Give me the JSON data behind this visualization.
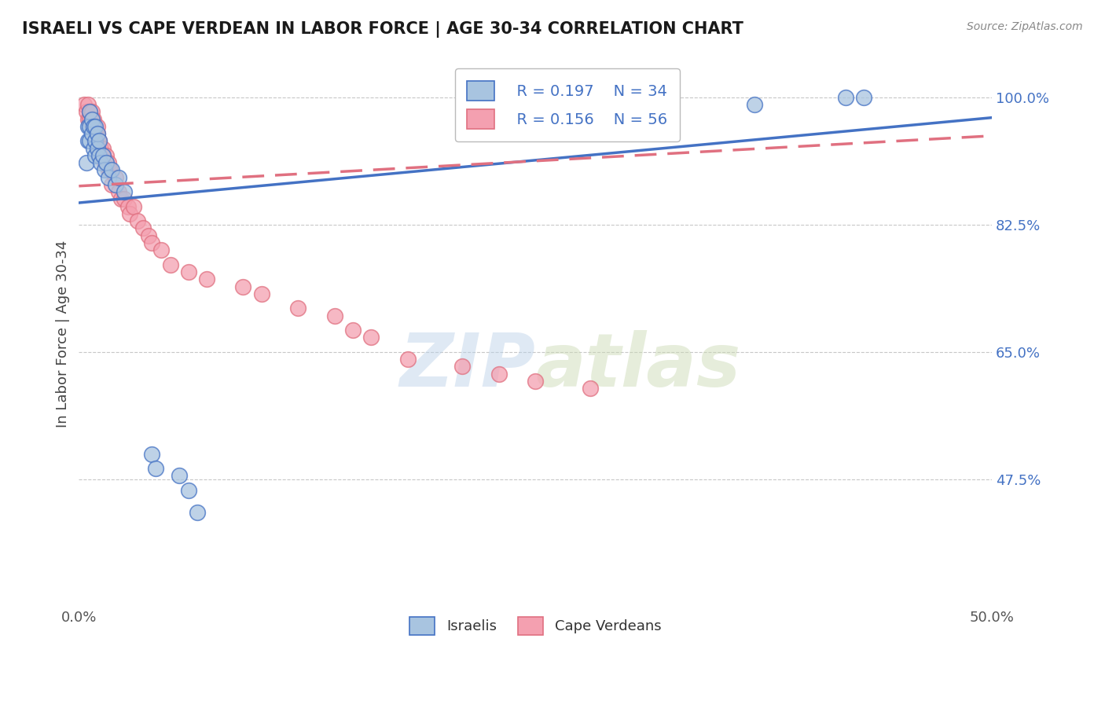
{
  "title": "ISRAELI VS CAPE VERDEAN IN LABOR FORCE | AGE 30-34 CORRELATION CHART",
  "source_text": "Source: ZipAtlas.com",
  "ylabel": "In Labor Force | Age 30-34",
  "xlim": [
    0.0,
    0.5
  ],
  "ylim": [
    0.3,
    1.05
  ],
  "xticks": [
    0.0,
    0.1,
    0.2,
    0.3,
    0.4,
    0.5
  ],
  "xticklabels": [
    "0.0%",
    "",
    "",
    "",
    "",
    "50.0%"
  ],
  "yticks": [
    0.475,
    0.65,
    0.825,
    1.0
  ],
  "yticklabels": [
    "47.5%",
    "65.0%",
    "82.5%",
    "100.0%"
  ],
  "legend_r_israeli": "R = 0.197",
  "legend_n_israeli": "N = 34",
  "legend_r_cape": "R = 0.156",
  "legend_n_cape": "N = 56",
  "israeli_color": "#a8c4e0",
  "cape_color": "#f4a0b0",
  "israeli_line_color": "#4472c4",
  "cape_line_color": "#e07080",
  "grid_color": "#c8c8c8",
  "background_color": "#ffffff",
  "watermark_zip": "ZIP",
  "watermark_atlas": "atlas",
  "israelis_label": "Israelis",
  "cape_label": "Cape Verdeans",
  "israeli_scatter_x": [
    0.004,
    0.005,
    0.005,
    0.006,
    0.006,
    0.006,
    0.007,
    0.007,
    0.008,
    0.008,
    0.009,
    0.009,
    0.009,
    0.01,
    0.01,
    0.011,
    0.011,
    0.012,
    0.013,
    0.014,
    0.015,
    0.016,
    0.018,
    0.02,
    0.022,
    0.025,
    0.04,
    0.042,
    0.055,
    0.06,
    0.065,
    0.37,
    0.42,
    0.43
  ],
  "israeli_scatter_y": [
    0.91,
    0.94,
    0.96,
    0.94,
    0.96,
    0.98,
    0.95,
    0.97,
    0.93,
    0.96,
    0.92,
    0.94,
    0.96,
    0.93,
    0.95,
    0.92,
    0.94,
    0.91,
    0.92,
    0.9,
    0.91,
    0.89,
    0.9,
    0.88,
    0.89,
    0.87,
    0.51,
    0.49,
    0.48,
    0.46,
    0.43,
    0.99,
    1.0,
    1.0
  ],
  "cape_scatter_x": [
    0.003,
    0.004,
    0.005,
    0.005,
    0.006,
    0.006,
    0.007,
    0.007,
    0.007,
    0.008,
    0.008,
    0.008,
    0.009,
    0.009,
    0.01,
    0.01,
    0.01,
    0.011,
    0.011,
    0.012,
    0.012,
    0.013,
    0.013,
    0.014,
    0.015,
    0.015,
    0.016,
    0.016,
    0.017,
    0.018,
    0.02,
    0.022,
    0.023,
    0.025,
    0.027,
    0.028,
    0.03,
    0.032,
    0.035,
    0.038,
    0.04,
    0.045,
    0.05,
    0.06,
    0.07,
    0.09,
    0.1,
    0.12,
    0.14,
    0.15,
    0.16,
    0.18,
    0.21,
    0.23,
    0.25,
    0.28
  ],
  "cape_scatter_y": [
    0.99,
    0.98,
    0.97,
    0.99,
    0.97,
    0.98,
    0.96,
    0.97,
    0.98,
    0.95,
    0.96,
    0.97,
    0.94,
    0.95,
    0.94,
    0.95,
    0.96,
    0.93,
    0.94,
    0.92,
    0.93,
    0.92,
    0.93,
    0.91,
    0.91,
    0.92,
    0.9,
    0.91,
    0.9,
    0.88,
    0.89,
    0.87,
    0.86,
    0.86,
    0.85,
    0.84,
    0.85,
    0.83,
    0.82,
    0.81,
    0.8,
    0.79,
    0.77,
    0.76,
    0.75,
    0.74,
    0.73,
    0.71,
    0.7,
    0.68,
    0.67,
    0.64,
    0.63,
    0.62,
    0.61,
    0.6
  ],
  "israeli_trend": [
    0.855,
    0.972
  ],
  "cape_trend": [
    0.878,
    0.947
  ]
}
